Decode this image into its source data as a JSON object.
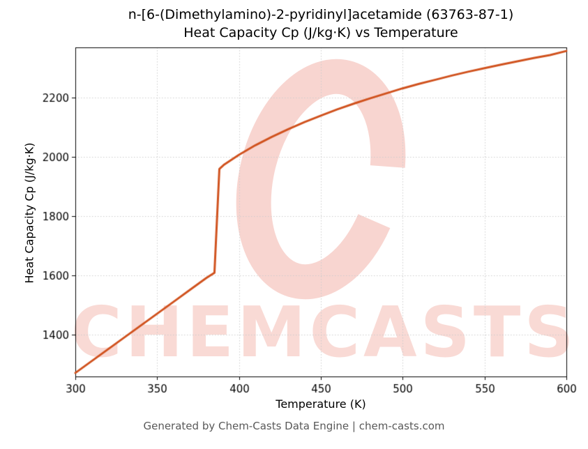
{
  "chart_data": {
    "type": "line",
    "title": "n-[6-(Dimethylamino)-2-pyridinyl]acetamide (63763-87-1)",
    "subtitle": "Heat Capacity Cp (J/kg·K) vs Temperature",
    "xlabel": "Temperature (K)",
    "ylabel": "Heat Capacity Cp (J/kg·K)",
    "xlim": [
      300,
      600
    ],
    "ylim": [
      1260,
      2370
    ],
    "xticks": [
      300,
      350,
      400,
      450,
      500,
      550,
      600
    ],
    "yticks": [
      1400,
      1600,
      1800,
      2000,
      2200
    ],
    "grid": true,
    "grid_color": "#cccccc",
    "line_color": "#d0521e",
    "line_width": 3,
    "legend": "none",
    "series": [
      {
        "name": "Heat Capacity Cp",
        "x": [
          300,
          310,
          320,
          330,
          340,
          350,
          360,
          370,
          380,
          385,
          388,
          391,
          400,
          410,
          420,
          430,
          440,
          450,
          460,
          470,
          480,
          490,
          500,
          510,
          520,
          530,
          540,
          550,
          560,
          570,
          580,
          590,
          600
        ],
        "y": [
          1272,
          1312,
          1352,
          1392,
          1432,
          1472,
          1512,
          1552,
          1592,
          1610,
          1960,
          1975,
          2008,
          2040,
          2068,
          2094,
          2118,
          2140,
          2161,
          2180,
          2198,
          2215,
          2232,
          2247,
          2261,
          2275,
          2288,
          2300,
          2312,
          2323,
          2334,
          2344,
          2358
        ]
      }
    ]
  },
  "watermark": {
    "text": "CHEMCASTS",
    "logo": "chemcasts-c-swirl",
    "color": "#e25842"
  },
  "footer": {
    "text": "Generated by Chem-Casts Data Engine | chem-casts.com"
  }
}
